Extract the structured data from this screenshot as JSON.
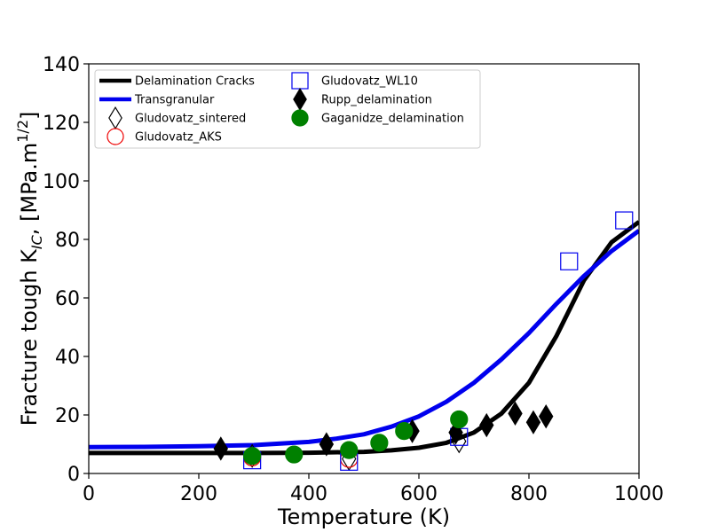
{
  "chart_data": {
    "type": "scatter",
    "xlabel": "Temperature (K)",
    "ylabel_parts": {
      "main": "Fracture tough K",
      "sub": "IC",
      "sep": ",    [MPa.m",
      "sup": "1/2",
      "end": "]"
    },
    "xlim": [
      0,
      1000
    ],
    "ylim": [
      0,
      140
    ],
    "xticks": [
      0,
      200,
      400,
      600,
      800,
      1000
    ],
    "yticks": [
      0,
      20,
      40,
      60,
      80,
      100,
      120,
      140
    ],
    "grid": false,
    "legend_position": "top-left",
    "lines": [
      {
        "name": "Delamination Cracks",
        "color": "#000000",
        "x": [
          0,
          100,
          200,
          300,
          400,
          500,
          550,
          600,
          650,
          700,
          750,
          800,
          850,
          900,
          950,
          1000
        ],
        "y": [
          7,
          7,
          7,
          7,
          7.1,
          7.4,
          7.9,
          8.8,
          10.5,
          14,
          20.5,
          31,
          47,
          66,
          79,
          86
        ]
      },
      {
        "name": "Transgranular",
        "color": "#0000ee",
        "x": [
          0,
          100,
          200,
          300,
          400,
          450,
          500,
          550,
          600,
          650,
          700,
          750,
          800,
          850,
          900,
          950,
          1000
        ],
        "y": [
          9,
          9.1,
          9.3,
          9.7,
          10.8,
          11.9,
          13.4,
          16,
          19.5,
          24.5,
          31,
          39,
          48,
          58,
          67.5,
          76,
          83
        ]
      }
    ],
    "series": [
      {
        "name": "Gludovatz_sintered",
        "marker": "thin-diamond",
        "color": "#000000",
        "filled": false,
        "x": [
          297,
          473,
          673
        ],
        "y": [
          6,
          5,
          11
        ]
      },
      {
        "name": "Gludovatz_AKS",
        "marker": "circle",
        "color": "#ee0000",
        "filled": false,
        "x": [
          297,
          473
        ],
        "y": [
          5.5,
          5
        ]
      },
      {
        "name": "Gludovatz_WL10",
        "marker": "square",
        "color": "#0000ee",
        "filled": false,
        "x": [
          297,
          473,
          673,
          873,
          973
        ],
        "y": [
          4.5,
          4,
          12.5,
          72.5,
          86.5
        ]
      },
      {
        "name": "Rupp_delamination",
        "marker": "thin-diamond",
        "color": "#000000",
        "filled": true,
        "x": [
          240,
          432,
          588,
          667,
          723,
          775,
          808,
          831
        ],
        "y": [
          8.5,
          10,
          14.5,
          14,
          16.5,
          20.5,
          17.5,
          19.5
        ]
      },
      {
        "name": "Gaganidze_delamination",
        "marker": "circle",
        "color": "#008000",
        "filled": true,
        "x": [
          297,
          373,
          473,
          528,
          573,
          673
        ],
        "y": [
          6,
          6.5,
          8,
          10.5,
          14.5,
          18.5
        ]
      }
    ]
  }
}
